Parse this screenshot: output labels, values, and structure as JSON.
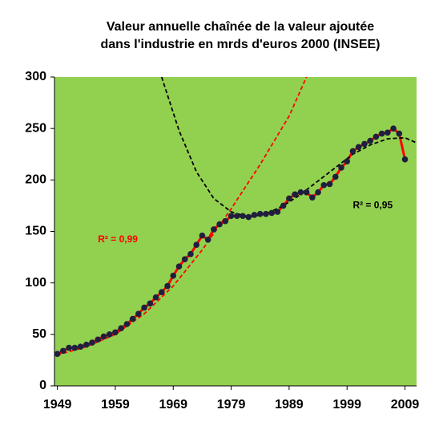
{
  "chart_data": {
    "type": "line",
    "title": [
      "Valeur annuelle chaînée de la valeur ajoutée",
      "dans l'industrie en mrds d'euros 2000 (INSEE)"
    ],
    "xlim": [
      1948.5,
      2011
    ],
    "xticks": [
      1949,
      1959,
      1969,
      1979,
      1989,
      1999,
      2009
    ],
    "ylim": [
      0,
      300
    ],
    "yticks": [
      0,
      50,
      100,
      150,
      200,
      250,
      300
    ],
    "grid": false,
    "background": "#92d050",
    "series": [
      {
        "color": "#ff0000",
        "style": "solid",
        "markers": true,
        "marker_color": "#1f1f3d",
        "x": [
          1949,
          1950,
          1951,
          1952,
          1953,
          1954,
          1955,
          1956,
          1957,
          1958,
          1959,
          1960,
          1961,
          1962,
          1963,
          1964,
          1965,
          1966,
          1967,
          1968,
          1969,
          1970,
          1971,
          1972,
          1973,
          1974,
          1975,
          1976,
          1977,
          1978,
          1979,
          1980,
          1981,
          1982,
          1983,
          1984,
          1985,
          1986,
          1987,
          1988,
          1989,
          1990,
          1991,
          1992,
          1993,
          1994,
          1995,
          1996,
          1997,
          1998,
          1999,
          2000,
          2001,
          2002,
          2003,
          2004,
          2005,
          2006,
          2007,
          2008,
          2009
        ],
        "values": [
          31,
          34,
          37,
          37,
          38,
          40,
          42,
          45,
          48,
          50,
          52,
          56,
          60,
          65,
          70,
          76,
          80,
          86,
          91,
          97,
          107,
          116,
          123,
          128,
          137,
          146,
          142,
          152,
          157,
          160,
          165,
          165,
          165,
          164,
          166,
          167,
          167,
          168,
          169,
          175,
          182,
          186,
          188,
          188,
          183,
          188,
          195,
          196,
          203,
          212,
          218,
          228,
          232,
          235,
          238,
          242,
          245,
          246,
          250,
          245,
          220
        ]
      },
      {
        "color": "#ff0000",
        "style": "dashed",
        "markers": false,
        "x": [
          1949,
          1954,
          1959,
          1964,
          1969,
          1974,
          1979,
          1984,
          1989,
          1992
        ],
        "values": [
          30,
          38,
          50,
          70,
          97,
          132,
          172,
          215,
          262,
          300
        ]
      },
      {
        "color": "#000000",
        "style": "dashed",
        "markers": false,
        "x": [
          1967,
          1970,
          1973,
          1976,
          1979,
          1982,
          1985,
          1988,
          1991,
          1994,
          1997,
          2000,
          2003,
          2006,
          2009,
          2011
        ],
        "values": [
          300,
          248,
          208,
          182,
          169,
          164,
          167,
          175,
          186,
          199,
          212,
          225,
          234,
          240,
          241,
          236
        ]
      }
    ],
    "annotations": [
      {
        "text": "R² = 0,99",
        "color": "#ff0000",
        "x": 1956,
        "y": 142
      },
      {
        "text": "R² = 0,95",
        "color": "#000000",
        "x": 2000,
        "y": 175
      }
    ]
  }
}
